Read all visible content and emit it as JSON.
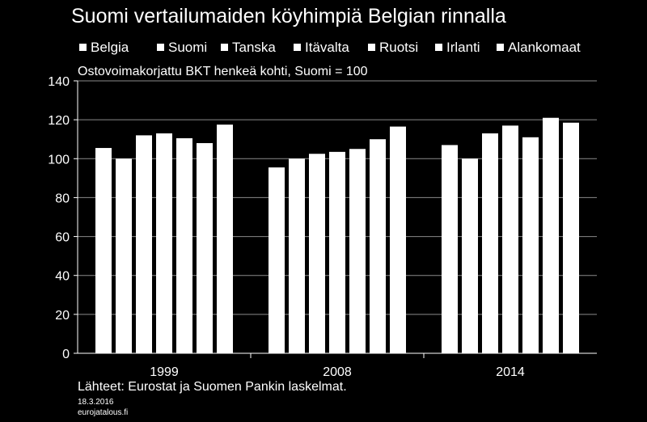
{
  "chart_data": {
    "type": "bar",
    "title": "Suomi vertailumaiden köyhimpiä Belgian rinnalla",
    "subtitle": "Ostovoimakorjattu BKT henkeä kohti, Suomi = 100",
    "categories": [
      "1999",
      "2008",
      "2014"
    ],
    "series": [
      {
        "name": "Belgia",
        "values": [
          105.5,
          95.5,
          107
        ]
      },
      {
        "name": "Suomi",
        "values": [
          100,
          100,
          100
        ]
      },
      {
        "name": "Tanska",
        "values": [
          112,
          102.5,
          113
        ]
      },
      {
        "name": "Itävalta",
        "values": [
          113,
          103.5,
          117
        ]
      },
      {
        "name": "Ruotsi",
        "values": [
          110.5,
          105,
          111
        ]
      },
      {
        "name": "Irlanti",
        "values": [
          108,
          110,
          121
        ]
      },
      {
        "name": "Alankomaat",
        "values": [
          117.5,
          116.5,
          118.5
        ]
      }
    ],
    "ylim": [
      0,
      140
    ],
    "yticks": [
      0,
      20,
      40,
      60,
      80,
      100,
      120,
      140
    ],
    "grid": true,
    "legend_position": "top",
    "bar_color": "#ffffff",
    "background_color": "#000000"
  },
  "footer": {
    "source": "Lähteet: Eurostat ja Suomen Pankin laskelmat.",
    "date": "18.3.2016",
    "site": "eurojatalous.fi"
  }
}
